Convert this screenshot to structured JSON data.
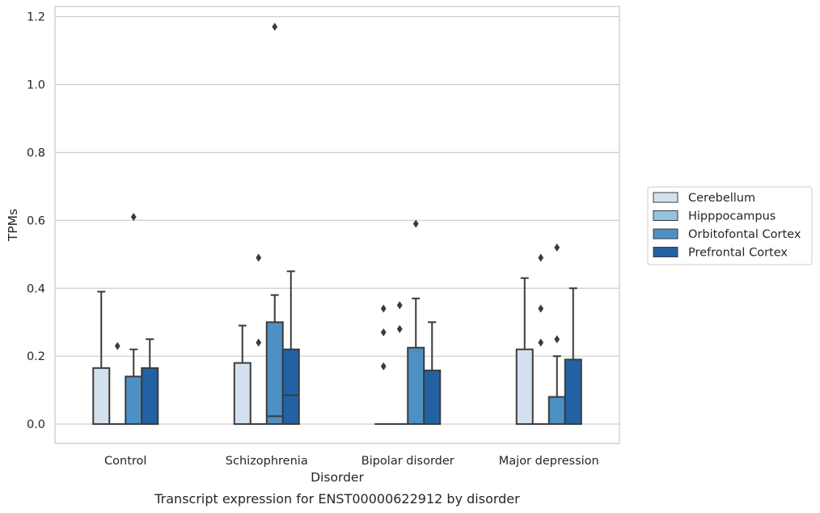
{
  "chart_data": {
    "type": "box",
    "title": "Transcript expression for ENST00000622912 by disorder",
    "xlabel": "Disorder",
    "ylabel": "TPMs",
    "ylim": [
      -0.057,
      1.23
    ],
    "yticks": [
      0.0,
      0.2,
      0.4,
      0.6,
      0.8,
      1.0,
      1.2
    ],
    "ytick_labels": [
      "0.0",
      "0.2",
      "0.4",
      "0.6",
      "0.8",
      "1.0",
      "1.2"
    ],
    "grid": "horizontal",
    "legend_position": "right",
    "categories": [
      "Control",
      "Schizophrenia",
      "Bipolar disorder",
      "Major depression"
    ],
    "series": [
      {
        "name": "Cerebellum",
        "color": "#d3e1ef",
        "boxes": [
          {
            "min": 0.0,
            "q1": 0.0,
            "median": 0.0,
            "q3": 0.165,
            "max": 0.39,
            "outliers": []
          },
          {
            "min": 0.0,
            "q1": 0.0,
            "median": 0.0,
            "q3": 0.18,
            "max": 0.29,
            "outliers": []
          },
          {
            "min": 0.0,
            "q1": 0.0,
            "median": 0.0,
            "q3": 0.0,
            "max": 0.0,
            "outliers": [
              0.17,
              0.27,
              0.34
            ]
          },
          {
            "min": 0.0,
            "q1": 0.0,
            "median": 0.0,
            "q3": 0.22,
            "max": 0.43,
            "outliers": []
          }
        ]
      },
      {
        "name": "Hipppocampus",
        "color": "#94c4df",
        "boxes": [
          {
            "min": 0.0,
            "q1": 0.0,
            "median": 0.0,
            "q3": 0.0,
            "max": 0.0,
            "outliers": [
              0.23
            ]
          },
          {
            "min": 0.0,
            "q1": 0.0,
            "median": 0.0,
            "q3": 0.0,
            "max": 0.0,
            "outliers": [
              0.24,
              0.49
            ]
          },
          {
            "min": 0.0,
            "q1": 0.0,
            "median": 0.0,
            "q3": 0.0,
            "max": 0.0,
            "outliers": [
              0.28,
              0.35
            ]
          },
          {
            "min": 0.0,
            "q1": 0.0,
            "median": 0.0,
            "q3": 0.0,
            "max": 0.0,
            "outliers": [
              0.24,
              0.34,
              0.49
            ]
          }
        ]
      },
      {
        "name": "Orbitofontal Cortex",
        "color": "#4d90c4",
        "boxes": [
          {
            "min": 0.0,
            "q1": 0.0,
            "median": 0.0,
            "q3": 0.14,
            "max": 0.22,
            "outliers": [
              0.61
            ]
          },
          {
            "min": 0.0,
            "q1": 0.0,
            "median": 0.023,
            "q3": 0.3,
            "max": 0.38,
            "outliers": [
              1.17
            ]
          },
          {
            "min": 0.0,
            "q1": 0.0,
            "median": 0.0,
            "q3": 0.225,
            "max": 0.37,
            "outliers": [
              0.59
            ]
          },
          {
            "min": 0.0,
            "q1": 0.0,
            "median": 0.0,
            "q3": 0.08,
            "max": 0.2,
            "outliers": [
              0.25,
              0.52
            ]
          }
        ]
      },
      {
        "name": "Prefrontal Cortex",
        "color": "#2262a4",
        "boxes": [
          {
            "min": 0.0,
            "q1": 0.0,
            "median": 0.0,
            "q3": 0.165,
            "max": 0.25,
            "outliers": []
          },
          {
            "min": 0.0,
            "q1": 0.0,
            "median": 0.085,
            "q3": 0.22,
            "max": 0.45,
            "outliers": []
          },
          {
            "min": 0.0,
            "q1": 0.0,
            "median": 0.0,
            "q3": 0.158,
            "max": 0.3,
            "outliers": []
          },
          {
            "min": 0.0,
            "q1": 0.0,
            "median": 0.0,
            "q3": 0.19,
            "max": 0.4,
            "outliers": []
          }
        ]
      }
    ]
  }
}
